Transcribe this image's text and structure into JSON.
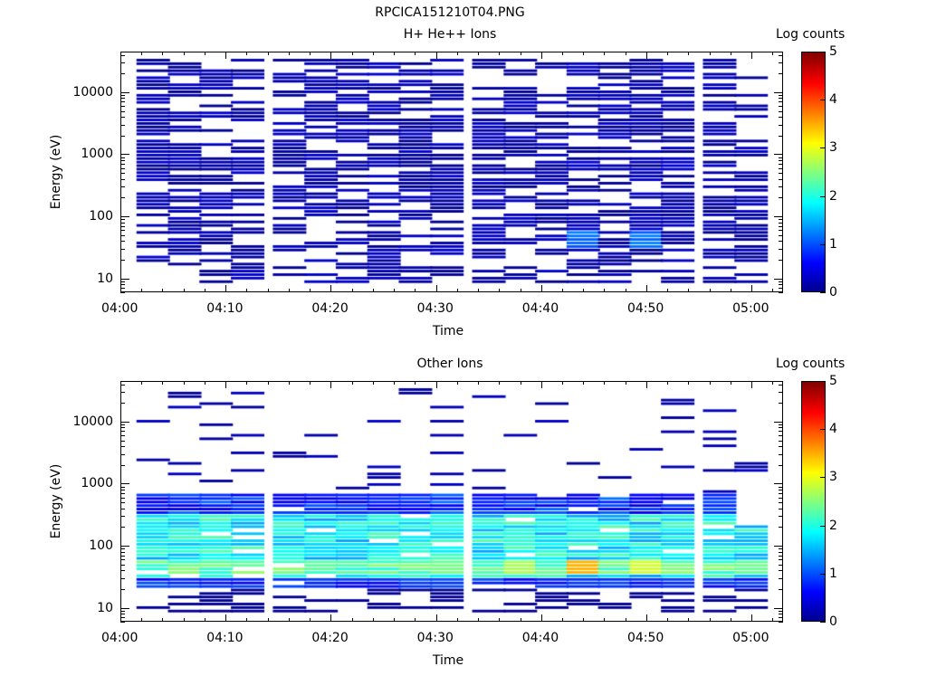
{
  "page_title": "RPCICA151210T04.PNG",
  "chart_data": [
    {
      "type": "heatmap",
      "title": "H+ He++ Ions",
      "xlabel": "Time",
      "ylabel": "Energy (eV)",
      "x_ticks": [
        "04:00",
        "04:10",
        "04:20",
        "04:30",
        "04:40",
        "04:50",
        "05:00"
      ],
      "xlim": [
        "04:00",
        "05:03"
      ],
      "y_scale": "log",
      "y_ticks": [
        "10",
        "100",
        "1000",
        "10000"
      ],
      "ylim": [
        6,
        45000
      ],
      "colorbar": {
        "label": "Log counts",
        "ticks": [
          "0",
          "1",
          "2",
          "3",
          "4",
          "5"
        ],
        "range": [
          0,
          5
        ],
        "colormap": "jet"
      },
      "grid": false,
      "time_bins": [
        "04:03",
        "04:06",
        "04:09",
        "04:12",
        "04:16",
        "04:19",
        "04:22",
        "04:25",
        "04:28",
        "04:31",
        "04:35",
        "04:38",
        "04:41",
        "04:44",
        "04:47",
        "04:50",
        "04:53",
        "04:57",
        "05:00"
      ],
      "description": "Sparse low-count signal (log counts ~0-0.5) across most energies 10-40000 eV; slightly elevated (~1) near 30-50 eV at 04:44 and 04:50"
    },
    {
      "type": "heatmap",
      "title": "Other Ions",
      "xlabel": "Time",
      "ylabel": "Energy (eV)",
      "x_ticks": [
        "04:00",
        "04:10",
        "04:20",
        "04:30",
        "04:40",
        "04:50",
        "05:00"
      ],
      "xlim": [
        "04:00",
        "05:03"
      ],
      "y_scale": "log",
      "y_ticks": [
        "10",
        "100",
        "1000",
        "10000"
      ],
      "ylim": [
        6,
        45000
      ],
      "colorbar": {
        "label": "Log counts",
        "ticks": [
          "0",
          "1",
          "2",
          "3",
          "4",
          "5"
        ],
        "range": [
          0,
          5
        ],
        "colormap": "jet"
      },
      "grid": false,
      "time_bins": [
        "04:03",
        "04:06",
        "04:09",
        "04:12",
        "04:16",
        "04:19",
        "04:22",
        "04:25",
        "04:28",
        "04:31",
        "04:35",
        "04:38",
        "04:41",
        "04:44",
        "04:47",
        "04:50",
        "04:53",
        "04:57",
        "05:00"
      ],
      "description": "Dense population 20-600 eV with log counts 1-3; peak ~3.5 near 40 eV at 04:45 and ~3 near 40-60 eV at 04:52; sparse high-energy streaks 2000-35000 eV"
    }
  ]
}
